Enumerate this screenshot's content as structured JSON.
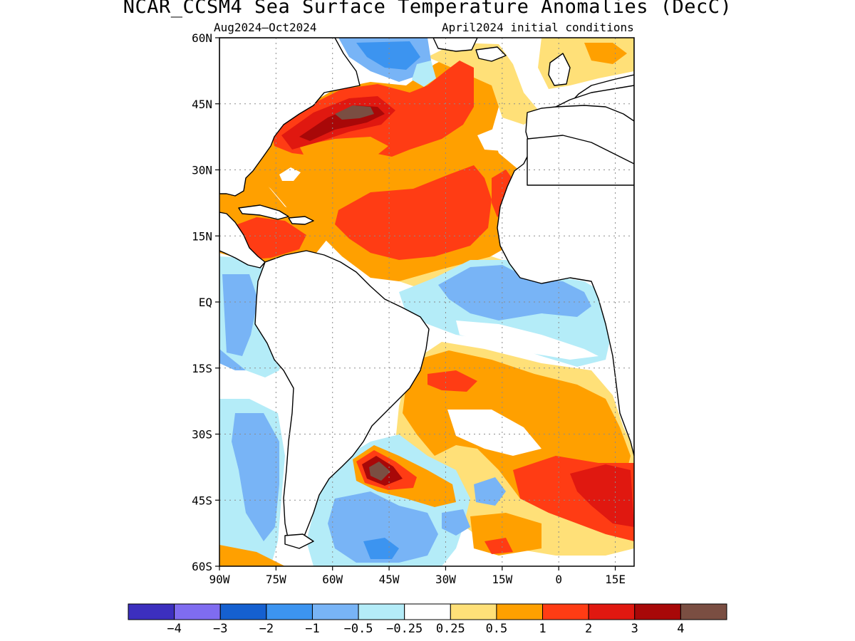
{
  "title": "NCAR_CCSM4 Sea Surface Temperature Anomalies (DecC)",
  "subtitle_left": "Aug2024–Oct2024",
  "subtitle_right": "April2024 initial conditions",
  "map": {
    "lon_range": [
      -90,
      20
    ],
    "lat_range": [
      -60,
      60
    ],
    "lat_ticks": [
      {
        "value": 60,
        "label": "60N"
      },
      {
        "value": 45,
        "label": "45N"
      },
      {
        "value": 30,
        "label": "30N"
      },
      {
        "value": 15,
        "label": "15N"
      },
      {
        "value": 0,
        "label": "EQ"
      },
      {
        "value": -15,
        "label": "15S"
      },
      {
        "value": -30,
        "label": "30S"
      },
      {
        "value": -45,
        "label": "45S"
      },
      {
        "value": -60,
        "label": "60S"
      }
    ],
    "lon_ticks": [
      {
        "value": -90,
        "label": "90W"
      },
      {
        "value": -75,
        "label": "75W"
      },
      {
        "value": -60,
        "label": "60W"
      },
      {
        "value": -45,
        "label": "45W"
      },
      {
        "value": -30,
        "label": "30W"
      },
      {
        "value": -15,
        "label": "15W"
      },
      {
        "value": 0,
        "label": "0"
      },
      {
        "value": 15,
        "label": "15E"
      }
    ],
    "grid": true
  },
  "colorbar": {
    "colors": [
      "#3c2fbe",
      "#7f6cf0",
      "#1560d0",
      "#3c94f0",
      "#78b4f6",
      "#b4ecf8",
      "#ffffff",
      "#ffe078",
      "#ffa000",
      "#ff3c14",
      "#e01810",
      "#a80808",
      "#7a4e42"
    ],
    "labels": [
      "−4",
      "−3",
      "−2",
      "−1",
      "−0.5",
      "−0.25",
      "0.25",
      "0.5",
      "1",
      "2",
      "3",
      "4"
    ]
  }
}
